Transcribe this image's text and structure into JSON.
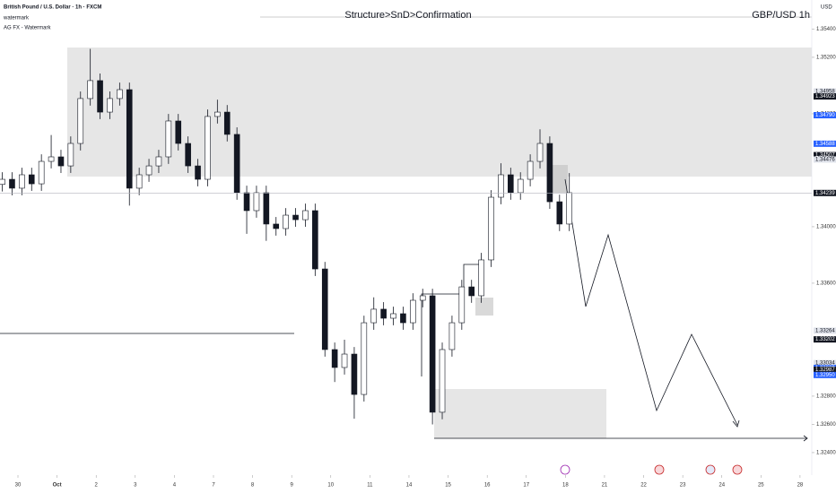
{
  "chart_data": {
    "type": "candlestick",
    "title": "British Pound / U.S. Dollar · 1h · FXCM",
    "indicators": [
      "watermark",
      "AG FX - Watermark"
    ],
    "annotation": "Structure>SnD>Confirmation",
    "symbol_label": "GBP/USD 1h",
    "y_unit": "USD",
    "x": [
      -0.4,
      -0.15,
      0.1,
      0.35,
      0.6,
      0.85,
      1.1,
      1.35,
      1.6,
      1.85,
      2.1,
      2.35,
      2.6,
      2.85,
      3.1,
      3.35,
      3.6,
      3.85,
      4.1,
      4.35,
      4.6,
      4.85,
      5.1,
      5.35,
      5.6,
      5.85,
      6.1,
      6.35,
      6.6,
      6.85,
      7.1,
      7.35,
      7.6,
      7.85,
      8.1,
      8.35,
      8.6,
      8.85,
      9.1,
      9.35,
      9.6,
      9.85,
      10.1,
      10.35,
      10.6,
      10.85,
      11.1,
      11.35,
      11.6,
      11.85,
      12.1,
      12.35,
      12.6,
      12.85,
      13.1,
      13.35,
      13.6,
      13.85,
      14.1
    ],
    "open": [
      1.343,
      1.34336,
      1.34273,
      1.34368,
      1.34304,
      1.34463,
      1.34495,
      1.34431,
      1.3459,
      1.34908,
      1.35035,
      1.34812,
      1.34908,
      1.34971,
      1.34273,
      1.34368,
      1.34431,
      1.34495,
      1.34749,
      1.3459,
      1.34431,
      1.34336,
      1.34781,
      1.34812,
      1.34654,
      1.34241,
      1.34114,
      1.34241,
      1.34019,
      1.33987,
      1.34082,
      1.3405,
      1.34114,
      1.33701,
      1.3313,
      1.33003,
      1.33098,
      1.32812,
      1.3332,
      1.33416,
      1.33352,
      1.33384,
      1.3332,
      1.33479,
      1.33511,
      1.32686,
      1.3313,
      1.3332,
      1.33574,
      1.33511,
      1.33765,
      1.34209,
      1.34368,
      1.34241,
      1.34336,
      1.34463,
      1.3459,
      1.34177,
      1.34019
    ],
    "high": [
      1.34386,
      1.34386,
      1.34418,
      1.34418,
      1.34513,
      1.3465,
      1.34545,
      1.3464,
      1.34958,
      1.3526,
      1.35085,
      1.34958,
      1.35021,
      1.35021,
      1.34418,
      1.34481,
      1.34545,
      1.34799,
      1.34799,
      1.3464,
      1.34481,
      1.34831,
      1.349,
      1.34862,
      1.34704,
      1.34291,
      1.34291,
      1.34291,
      1.34069,
      1.34132,
      1.34132,
      1.34164,
      1.34164,
      1.33751,
      1.3318,
      1.332,
      1.33148,
      1.3337,
      1.335,
      1.33466,
      1.33434,
      1.33434,
      1.33529,
      1.33561,
      1.33561,
      1.3318,
      1.3337,
      1.33624,
      1.33624,
      1.33815,
      1.34259,
      1.3445,
      1.34418,
      1.34386,
      1.34513,
      1.3469,
      1.3464,
      1.34227,
      1.3438
    ],
    "low": [
      1.3425,
      1.34223,
      1.34223,
      1.34254,
      1.34254,
      1.34413,
      1.34381,
      1.34381,
      1.3454,
      1.34858,
      1.34762,
      1.34762,
      1.34858,
      1.3415,
      1.34223,
      1.34318,
      1.34381,
      1.34445,
      1.3454,
      1.34381,
      1.34286,
      1.34286,
      1.34731,
      1.34604,
      1.34191,
      1.3395,
      1.34064,
      1.339,
      1.33937,
      1.33937,
      1.34,
      1.34,
      1.33651,
      1.3308,
      1.329,
      1.32953,
      1.3264,
      1.32762,
      1.3327,
      1.33302,
      1.33302,
      1.3327,
      1.3327,
      1.33429,
      1.326,
      1.32636,
      1.3308,
      1.3327,
      1.33461,
      1.33461,
      1.33715,
      1.34159,
      1.34191,
      1.34191,
      1.34286,
      1.34413,
      1.34127,
      1.33969,
      1.33969
    ],
    "close": [
      1.34336,
      1.34273,
      1.34368,
      1.34304,
      1.34463,
      1.34495,
      1.34431,
      1.3459,
      1.34908,
      1.35035,
      1.34812,
      1.34908,
      1.34971,
      1.34273,
      1.34368,
      1.34431,
      1.34495,
      1.34749,
      1.3459,
      1.34431,
      1.34336,
      1.34781,
      1.34812,
      1.34654,
      1.34241,
      1.34114,
      1.34241,
      1.34019,
      1.33987,
      1.34082,
      1.3405,
      1.34114,
      1.33701,
      1.3313,
      1.33003,
      1.33098,
      1.32812,
      1.3332,
      1.33416,
      1.33352,
      1.33384,
      1.3332,
      1.33479,
      1.33511,
      1.32686,
      1.3313,
      1.3332,
      1.33574,
      1.33511,
      1.33765,
      1.34209,
      1.34368,
      1.34241,
      1.34336,
      1.34463,
      1.3459,
      1.34177,
      1.34019,
      1.34241
    ],
    "xlim": [
      -0.459,
      20.3
    ],
    "xticks": [
      {
        "value": 0,
        "label": "30"
      },
      {
        "value": 1,
        "label": "Oct"
      },
      {
        "value": 2,
        "label": "2"
      },
      {
        "value": 3,
        "label": "3"
      },
      {
        "value": 4,
        "label": "4"
      },
      {
        "value": 5,
        "label": "7"
      },
      {
        "value": 6,
        "label": "8"
      },
      {
        "value": 7,
        "label": "9"
      },
      {
        "value": 8,
        "label": "10"
      },
      {
        "value": 9,
        "label": "11"
      },
      {
        "value": 10,
        "label": "14"
      },
      {
        "value": 11,
        "label": "15"
      },
      {
        "value": 12,
        "label": "16"
      },
      {
        "value": 13,
        "label": "17"
      },
      {
        "value": 14,
        "label": "18"
      },
      {
        "value": 15,
        "label": "21"
      },
      {
        "value": 16,
        "label": "22"
      },
      {
        "value": 17,
        "label": "23"
      },
      {
        "value": 18,
        "label": "24"
      },
      {
        "value": 19,
        "label": "25"
      },
      {
        "value": 20,
        "label": "28"
      }
    ],
    "ylim": [
      1.32241,
      1.35606
    ],
    "yticks": [
      {
        "value": 1.324,
        "label": "1.32400"
      },
      {
        "value": 1.326,
        "label": "1.32600"
      },
      {
        "value": 1.328,
        "label": "1.32800"
      },
      {
        "value": 1.336,
        "label": "1.33600"
      },
      {
        "value": 1.34,
        "label": "1.34000"
      },
      {
        "value": 1.348,
        "label": "1.34800"
      },
      {
        "value": 1.352,
        "label": "1.35200"
      },
      {
        "value": 1.354,
        "label": "1.35400"
      }
    ],
    "price_labels": [
      {
        "value": 1.34958,
        "label": "1.34958",
        "color": "#e0e3eb"
      },
      {
        "value": 1.34923,
        "label": "1.34923",
        "color": "#131722"
      },
      {
        "value": 1.3479,
        "label": "1.34790",
        "color": "#2962ff"
      },
      {
        "value": 1.34588,
        "label": "1.34588",
        "color": "#2962ff"
      },
      {
        "value": 1.34507,
        "label": "1.34507",
        "color": "#131722"
      },
      {
        "value": 1.34476,
        "label": "1.34476",
        "color": "#e0e3eb"
      },
      {
        "value": 1.34239,
        "label": "1.34239",
        "color": "#131722"
      },
      {
        "value": 1.33264,
        "label": "1.33264",
        "color": "#e0e3eb"
      },
      {
        "value": 1.33202,
        "label": "1.33202",
        "color": "#131722"
      },
      {
        "value": 1.33034,
        "label": "1.33034",
        "color": "#e0e3eb"
      },
      {
        "value": 1.33,
        "label": "1.33000",
        "color": "#2962ff"
      },
      {
        "value": 1.32987,
        "label": "1.32987",
        "color": "#131722"
      },
      {
        "value": 1.3295,
        "label": "1.32950",
        "color": "#2962ff"
      }
    ],
    "up_color": "#ffffff",
    "down_color": "#131722"
  }
}
